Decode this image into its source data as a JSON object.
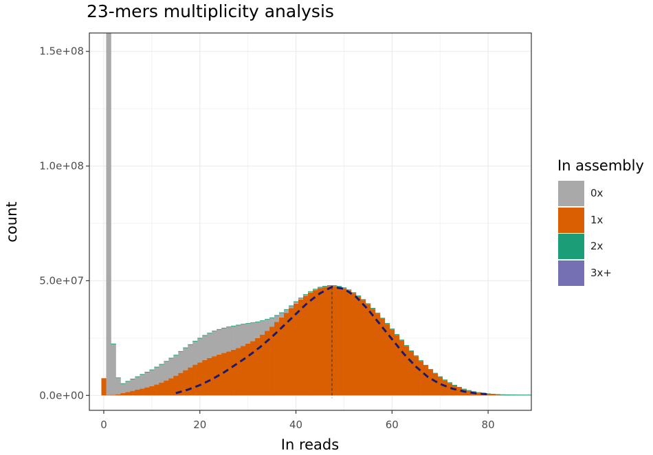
{
  "chart_data": {
    "type": "bar",
    "title": "23-mers multiplicity analysis",
    "xlabel": "In reads",
    "ylabel": "count",
    "xlim": [
      -3,
      89
    ],
    "ylim": [
      -6500000,
      158000000
    ],
    "x_ticks": [
      0,
      20,
      40,
      60,
      80
    ],
    "x_tick_labels": [
      "0",
      "20",
      "40",
      "60",
      "80"
    ],
    "y_ticks": [
      0,
      50000000,
      100000000,
      150000000
    ],
    "y_tick_labels": [
      "0.0e+00",
      "5.0e+07",
      "1.0e+08",
      "1.5e+08"
    ],
    "grid": true,
    "legend": {
      "title": "In assembly",
      "position": "right",
      "entries": [
        {
          "label": "0x",
          "color": "#a9a9a9"
        },
        {
          "label": "1x",
          "color": "#d95f02"
        },
        {
          "label": "2x",
          "color": "#1b9e77"
        },
        {
          "label": "3x+",
          "color": "#7570b3"
        }
      ]
    },
    "bin_width": 1,
    "x": [
      0,
      1,
      2,
      3,
      4,
      5,
      6,
      7,
      8,
      9,
      10,
      11,
      12,
      13,
      14,
      15,
      16,
      17,
      18,
      19,
      20,
      21,
      22,
      23,
      24,
      25,
      26,
      27,
      28,
      29,
      30,
      31,
      32,
      33,
      34,
      35,
      36,
      37,
      38,
      39,
      40,
      41,
      42,
      43,
      44,
      45,
      46,
      47,
      48,
      49,
      50,
      51,
      52,
      53,
      54,
      55,
      56,
      57,
      58,
      59,
      60,
      61,
      62,
      63,
      64,
      65,
      66,
      67,
      68,
      69,
      70,
      71,
      72,
      73,
      74,
      75,
      76,
      77,
      78,
      79,
      80,
      81,
      82,
      83,
      84,
      85,
      86,
      87,
      88,
      89
    ],
    "series": [
      {
        "name": "1x",
        "color": "#d95f02",
        "values": [
          7500000,
          200000,
          300000,
          500000,
          1000000,
          1500000,
          2000000,
          2500000,
          3000000,
          3500000,
          4000000,
          4800000,
          5600000,
          6500000,
          7500000,
          8600000,
          9800000,
          11000000,
          12200000,
          13400000,
          14400000,
          15400000,
          16300000,
          17100000,
          17800000,
          18500000,
          19200000,
          19900000,
          20700000,
          21600000,
          22600000,
          23700000,
          25000000,
          26500000,
          28200000,
          30000000,
          32000000,
          34000000,
          36000000,
          38000000,
          40000000,
          41800000,
          43400000,
          44800000,
          45900000,
          46800000,
          47300000,
          47600000,
          47600000,
          47300000,
          46700000,
          45800000,
          44600000,
          43200000,
          41600000,
          39800000,
          37800000,
          35700000,
          33500000,
          31200000,
          28800000,
          26400000,
          24000000,
          21600000,
          19300000,
          17100000,
          15000000,
          13000000,
          11200000,
          9500000,
          8000000,
          6600000,
          5400000,
          4300000,
          3400000,
          2600000,
          2000000,
          1500000,
          1100000,
          800000,
          550000,
          380000,
          260000,
          170000,
          110000,
          70000,
          45000,
          28000,
          17000,
          10000
        ]
      },
      {
        "name": "0x",
        "color": "#a9a9a9",
        "values": [
          0,
          158000000,
          22000000,
          7000000,
          4000000,
          4500000,
          5000000,
          5500000,
          6000000,
          6500000,
          7000000,
          7400000,
          7800000,
          8200000,
          8600000,
          8800000,
          9200000,
          9600000,
          9800000,
          10100000,
          10400000,
          10600000,
          10700000,
          10800000,
          10800000,
          10700000,
          10500000,
          10200000,
          9800000,
          9300000,
          8600000,
          7800000,
          6900000,
          5900000,
          4800000,
          3700000,
          2700000,
          1900000,
          1300000,
          900000,
          700000,
          500000,
          400000,
          300000,
          250000,
          200000,
          150000,
          120000,
          100000,
          80000,
          70000,
          60000,
          50000,
          45000,
          40000,
          35000,
          30000,
          25000,
          20000,
          18000,
          15000,
          12000,
          10000,
          8000,
          6000,
          5000,
          4000,
          3000,
          2500,
          2000,
          1500,
          1200,
          1000,
          800,
          600,
          500,
          400,
          300,
          250,
          200,
          150,
          120,
          100,
          80,
          60,
          50,
          40,
          30,
          20,
          10
        ]
      },
      {
        "name": "2x",
        "color": "#1b9e77",
        "values": [
          0,
          0,
          300000,
          300000,
          300000,
          300000,
          300000,
          300000,
          300000,
          300000,
          300000,
          300000,
          300000,
          300000,
          300000,
          300000,
          300000,
          300000,
          300000,
          300000,
          300000,
          300000,
          300000,
          300000,
          300000,
          300000,
          300000,
          300000,
          300000,
          300000,
          300000,
          300000,
          300000,
          300000,
          300000,
          300000,
          300000,
          300000,
          300000,
          300000,
          300000,
          300000,
          300000,
          300000,
          300000,
          300000,
          300000,
          300000,
          300000,
          300000,
          300000,
          300000,
          300000,
          300000,
          300000,
          300000,
          300000,
          300000,
          300000,
          300000,
          300000,
          300000,
          300000,
          300000,
          300000,
          300000,
          300000,
          300000,
          300000,
          300000,
          300000,
          300000,
          300000,
          300000,
          300000,
          300000,
          300000,
          300000,
          300000,
          300000,
          300000,
          300000,
          300000,
          300000,
          300000,
          300000,
          300000,
          300000,
          300000,
          300000
        ]
      },
      {
        "name": "3x+",
        "color": "#7570b3",
        "values": [
          0,
          0,
          0,
          0,
          0,
          0,
          0,
          0,
          0,
          0,
          0,
          0,
          0,
          0,
          0,
          0,
          0,
          0,
          0,
          0,
          0,
          0,
          0,
          0,
          0,
          0,
          0,
          0,
          0,
          0,
          0,
          0,
          0,
          0,
          0,
          0,
          0,
          0,
          0,
          0,
          0,
          0,
          0,
          0,
          0,
          0,
          0,
          0,
          0,
          0,
          0,
          0,
          0,
          0,
          0,
          0,
          0,
          0,
          0,
          0,
          0,
          0,
          0,
          0,
          0,
          0,
          0,
          0,
          0,
          0,
          0,
          0,
          0,
          0,
          0,
          0,
          0,
          0,
          0,
          0,
          0,
          0,
          0,
          0,
          0,
          0,
          0,
          0,
          0,
          0
        ]
      }
    ],
    "fit_curve": {
      "style": "dashed",
      "color": "#1a1a6e",
      "x_range": [
        15,
        80
      ],
      "peak_x": 47.5,
      "peak_y": 47300000,
      "x": [
        15,
        17.5,
        20,
        22.5,
        25,
        27.5,
        30,
        32.5,
        35,
        37.5,
        40,
        42.5,
        45,
        47.5,
        50,
        52.5,
        55,
        57.5,
        60,
        62.5,
        65,
        67.5,
        70,
        72.5,
        75,
        77.5,
        80
      ],
      "y": [
        1000000,
        2500000,
        4500000,
        7000000,
        10000000,
        13500000,
        17000000,
        21000000,
        25500000,
        30500000,
        35500000,
        40500000,
        44500000,
        47300000,
        46500000,
        43000000,
        37500000,
        31000000,
        24500000,
        18000000,
        12500000,
        8000000,
        5000000,
        3000000,
        1700000,
        900000,
        500000
      ]
    },
    "peak_marker": {
      "x": 47.5,
      "style": "dashed vertical line"
    }
  }
}
